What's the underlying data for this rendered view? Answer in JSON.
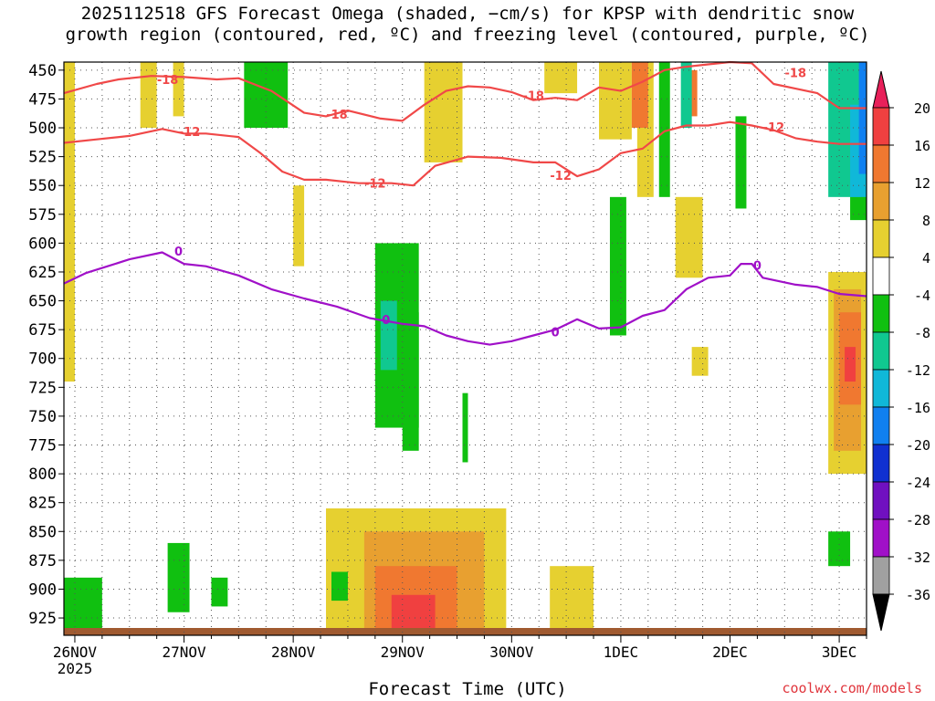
{
  "title_line1": "2025112518 GFS Forecast Omega (shaded, −cm/s) for KPSP with dendritic snow",
  "title_line2": "growth region (contoured, red, ºC) and freezing level (contoured, purple, ºC)",
  "xlabel": "Forecast Time (UTC)",
  "credit": "coolwx.com/models",
  "chart_data": {
    "type": "heatmap",
    "title": "2025112518 GFS Forecast Omega (shaded, −cm/s) for KPSP with dendritic snow growth region (contoured, red, ºC) and freezing level (contoured, purple, ºC)",
    "xlabel": "Forecast Time (UTC)",
    "ylabel": "",
    "x_ticks": [
      {
        "label": "26NOV",
        "sub": "2025",
        "day": 0
      },
      {
        "label": "27NOV",
        "sub": "",
        "day": 1
      },
      {
        "label": "28NOV",
        "sub": "",
        "day": 2
      },
      {
        "label": "29NOV",
        "sub": "",
        "day": 3
      },
      {
        "label": "30NOV",
        "sub": "",
        "day": 4
      },
      {
        "label": "1DEC",
        "sub": "",
        "day": 5
      },
      {
        "label": "2DEC",
        "sub": "",
        "day": 6
      },
      {
        "label": "3DEC",
        "sub": "",
        "day": 7
      }
    ],
    "xlim_days": [
      -0.1,
      7.25
    ],
    "y_ticks": [
      450,
      475,
      500,
      525,
      550,
      575,
      600,
      625,
      650,
      675,
      700,
      725,
      750,
      775,
      800,
      825,
      850,
      875,
      900,
      925
    ],
    "ylim_hpa": [
      443,
      940
    ],
    "grid": "dotted",
    "colorbar": {
      "labels": [
        20,
        16,
        12,
        8,
        4,
        -4,
        -8,
        -12,
        -16,
        -20,
        -24,
        -28,
        -32,
        -36
      ],
      "colors": [
        "#e8205a",
        "#f04040",
        "#f07830",
        "#e8a030",
        "#e6d030",
        "#ffffff",
        "#10c010",
        "#10c890",
        "#10b8d8",
        "#1080f0",
        "#1030d0",
        "#7010c0",
        "#a010c8",
        "#a0a0a0",
        "#000000"
      ]
    },
    "series": [
      {
        "name": "-18",
        "color": "#f04848",
        "x": [
          -0.1,
          0.2,
          0.4,
          0.7,
          1.0,
          1.3,
          1.5,
          1.8,
          2.1,
          2.3,
          2.5,
          2.8,
          3.0,
          3.2,
          3.4,
          3.6,
          3.8,
          4.0,
          4.2,
          4.4,
          4.6,
          4.8,
          5.0,
          5.2,
          5.4,
          5.6,
          5.8,
          6.0,
          6.2,
          6.4,
          6.6,
          6.8,
          7.0,
          7.25
        ],
        "y": [
          470,
          462,
          458,
          455,
          456,
          458,
          457,
          468,
          487,
          490,
          485,
          492,
          494,
          480,
          468,
          464,
          465,
          469,
          476,
          474,
          476,
          465,
          468,
          460,
          450,
          447,
          445,
          443,
          444,
          462,
          466,
          470,
          483,
          483
        ]
      },
      {
        "name": "-12",
        "color": "#f04848",
        "x": [
          -0.1,
          0.2,
          0.5,
          0.8,
          1.0,
          1.2,
          1.5,
          1.7,
          1.9,
          2.1,
          2.3,
          2.6,
          2.9,
          3.1,
          3.3,
          3.6,
          3.9,
          4.2,
          4.4,
          4.6,
          4.8,
          5.0,
          5.2,
          5.4,
          5.6,
          5.8,
          6.0,
          6.2,
          6.4,
          6.6,
          6.8,
          7.0,
          7.25
        ],
        "y": [
          513,
          510,
          507,
          501,
          505,
          505,
          508,
          522,
          538,
          545,
          545,
          548,
          548,
          550,
          533,
          525,
          526,
          530,
          530,
          542,
          536,
          522,
          518,
          503,
          498,
          498,
          495,
          498,
          502,
          509,
          512,
          514,
          514
        ]
      },
      {
        "name": "0",
        "color": "#a010c8",
        "x": [
          -0.1,
          0.1,
          0.3,
          0.5,
          0.8,
          1.0,
          1.2,
          1.5,
          1.8,
          2.1,
          2.4,
          2.7,
          3.0,
          3.2,
          3.4,
          3.6,
          3.8,
          4.0,
          4.2,
          4.4,
          4.6,
          4.8,
          5.0,
          5.2,
          5.4,
          5.6,
          5.8,
          6.0,
          6.1,
          6.2,
          6.3,
          6.6,
          6.8,
          7.0,
          7.25
        ],
        "y": [
          635,
          626,
          620,
          614,
          608,
          618,
          620,
          628,
          640,
          648,
          655,
          665,
          670,
          672,
          680,
          685,
          688,
          685,
          680,
          675,
          666,
          674,
          673,
          663,
          658,
          640,
          630,
          628,
          618,
          618,
          630,
          636,
          638,
          644,
          646
        ]
      }
    ],
    "contour_labels": [
      {
        "text": "-18",
        "x": 0.85,
        "y": 458
      },
      {
        "text": "-18",
        "x": 2.4,
        "y": 488
      },
      {
        "text": "-18",
        "x": 4.2,
        "y": 472
      },
      {
        "text": "-18",
        "x": 6.6,
        "y": 452
      },
      {
        "text": "-12",
        "x": 1.05,
        "y": 503
      },
      {
        "text": "-12",
        "x": 2.75,
        "y": 548
      },
      {
        "text": "-12",
        "x": 4.45,
        "y": 541
      },
      {
        "text": "-12",
        "x": 6.4,
        "y": 499
      },
      {
        "text": "0",
        "x": 0.95,
        "y": 607
      },
      {
        "text": "0",
        "x": 2.85,
        "y": 666
      },
      {
        "text": "0",
        "x": 4.4,
        "y": 677
      },
      {
        "text": "0",
        "x": 6.25,
        "y": 619
      }
    ],
    "shaded_regions": [
      {
        "value": 4,
        "x": [
          -0.1,
          0.0
        ],
        "y": [
          443,
          720
        ]
      },
      {
        "value": 4,
        "x": [
          0.6,
          0.75
        ],
        "y": [
          443,
          500
        ]
      },
      {
        "value": 4,
        "x": [
          0.9,
          1.0
        ],
        "y": [
          443,
          490
        ]
      },
      {
        "value": 4,
        "x": [
          2.0,
          2.1
        ],
        "y": [
          550,
          620
        ]
      },
      {
        "value": 4,
        "x": [
          3.2,
          3.55
        ],
        "y": [
          443,
          530
        ]
      },
      {
        "value": 4,
        "x": [
          4.3,
          4.6
        ],
        "y": [
          443,
          470
        ]
      },
      {
        "value": 4,
        "x": [
          4.8,
          5.1
        ],
        "y": [
          443,
          510
        ]
      },
      {
        "value": 4,
        "x": [
          5.15,
          5.3
        ],
        "y": [
          443,
          560
        ]
      },
      {
        "value": 4,
        "x": [
          5.5,
          5.75
        ],
        "y": [
          560,
          630
        ]
      },
      {
        "value": 4,
        "x": [
          5.65,
          5.8
        ],
        "y": [
          690,
          715
        ]
      },
      {
        "value": 4,
        "x": [
          6.9,
          7.25
        ],
        "y": [
          625,
          800
        ]
      },
      {
        "value": 4,
        "x": [
          2.3,
          3.95
        ],
        "y": [
          830,
          935
        ]
      },
      {
        "value": 4,
        "x": [
          4.35,
          4.75
        ],
        "y": [
          880,
          935
        ]
      },
      {
        "value": 8,
        "x": [
          2.65,
          3.75
        ],
        "y": [
          850,
          935
        ]
      },
      {
        "value": 8,
        "x": [
          6.95,
          7.2
        ],
        "y": [
          640,
          780
        ]
      },
      {
        "value": 12,
        "x": [
          2.75,
          3.5
        ],
        "y": [
          880,
          935
        ]
      },
      {
        "value": 12,
        "x": [
          7.0,
          7.2
        ],
        "y": [
          660,
          740
        ]
      },
      {
        "value": 12,
        "x": [
          5.1,
          5.25
        ],
        "y": [
          443,
          500
        ]
      },
      {
        "value": 12,
        "x": [
          5.6,
          5.7
        ],
        "y": [
          450,
          490
        ]
      },
      {
        "value": 16,
        "x": [
          7.05,
          7.15
        ],
        "y": [
          690,
          720
        ]
      },
      {
        "value": 16,
        "x": [
          2.9,
          3.3
        ],
        "y": [
          905,
          935
        ]
      },
      {
        "value": -4,
        "x": [
          1.55,
          1.95
        ],
        "y": [
          443,
          500
        ]
      },
      {
        "value": -4,
        "x": [
          2.75,
          3.15
        ],
        "y": [
          600,
          760
        ]
      },
      {
        "value": -4,
        "x": [
          3.0,
          3.15
        ],
        "y": [
          660,
          780
        ]
      },
      {
        "value": -4,
        "x": [
          3.55,
          3.6
        ],
        "y": [
          730,
          790
        ]
      },
      {
        "value": -4,
        "x": [
          4.9,
          5.05
        ],
        "y": [
          560,
          680
        ]
      },
      {
        "value": -4,
        "x": [
          5.35,
          5.45
        ],
        "y": [
          443,
          560
        ]
      },
      {
        "value": -4,
        "x": [
          6.05,
          6.15
        ],
        "y": [
          490,
          570
        ]
      },
      {
        "value": -4,
        "x": [
          7.1,
          7.25
        ],
        "y": [
          540,
          580
        ]
      },
      {
        "value": -4,
        "x": [
          -0.1,
          0.25
        ],
        "y": [
          890,
          935
        ]
      },
      {
        "value": -4,
        "x": [
          0.85,
          1.05
        ],
        "y": [
          860,
          920
        ]
      },
      {
        "value": -4,
        "x": [
          1.25,
          1.4
        ],
        "y": [
          890,
          915
        ]
      },
      {
        "value": -4,
        "x": [
          2.35,
          2.5
        ],
        "y": [
          885,
          910
        ]
      },
      {
        "value": -4,
        "x": [
          6.9,
          7.1
        ],
        "y": [
          850,
          880
        ]
      },
      {
        "value": -8,
        "x": [
          6.9,
          7.2
        ],
        "y": [
          443,
          560
        ]
      },
      {
        "value": -8,
        "x": [
          2.8,
          2.95
        ],
        "y": [
          650,
          710
        ]
      },
      {
        "value": -12,
        "x": [
          7.1,
          7.25
        ],
        "y": [
          480,
          560
        ]
      },
      {
        "value": -16,
        "x": [
          7.18,
          7.25
        ],
        "y": [
          443,
          540
        ]
      },
      {
        "value": -8,
        "x": [
          5.55,
          5.65
        ],
        "y": [
          443,
          500
        ]
      }
    ]
  }
}
